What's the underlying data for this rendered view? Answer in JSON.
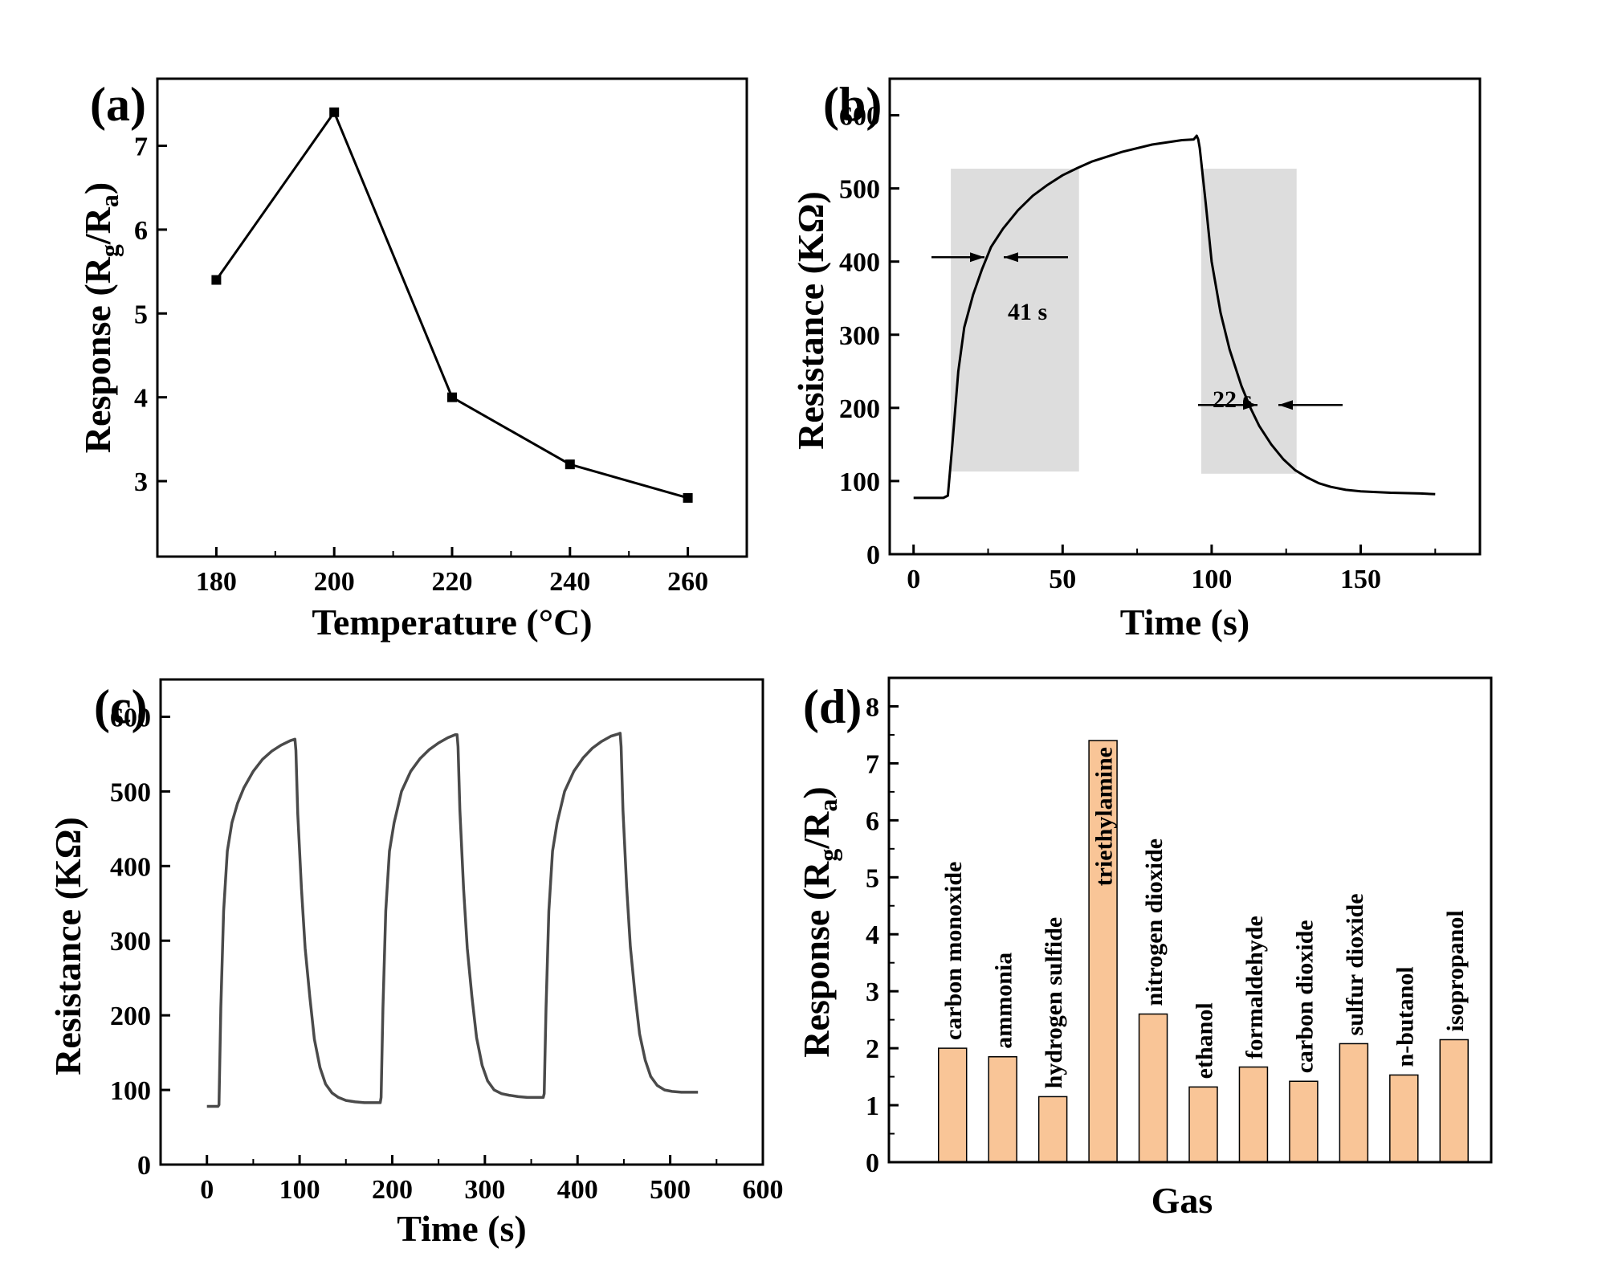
{
  "chart_data": [
    {
      "panel": "(a)",
      "type": "line",
      "xlabel": "Temperature (°C)",
      "ylabel": "Response (Rg/Ra)",
      "ylabel_parts": {
        "prefix": "Response (R",
        "sub1": "g",
        "mid": "/R",
        "sub2": "a",
        "suffix": ")"
      },
      "x": [
        180,
        200,
        220,
        240,
        260
      ],
      "y": [
        5.4,
        7.4,
        4.0,
        3.2,
        2.8
      ],
      "xlim": [
        170,
        270
      ],
      "ylim": [
        2.1,
        7.8
      ],
      "xticks": [
        180,
        200,
        220,
        240,
        260
      ],
      "yticks": [
        3,
        4,
        5,
        6,
        7
      ]
    },
    {
      "panel": "(b)",
      "type": "line",
      "xlabel": "Time (s)",
      "ylabel": "Resistance (KΩ)",
      "x": [
        0,
        10,
        11.5,
        13,
        15,
        17,
        20,
        23,
        26,
        30,
        35,
        40,
        45,
        50,
        55,
        60,
        70,
        80,
        90,
        94,
        95,
        95.5,
        96,
        98,
        100,
        103,
        106,
        110,
        113,
        116,
        120,
        124,
        128,
        132,
        136,
        140,
        145,
        150,
        160,
        170,
        175
      ],
      "y": [
        77,
        77,
        80,
        150,
        250,
        310,
        355,
        390,
        420,
        445,
        470,
        490,
        505,
        518,
        528,
        537,
        550,
        560,
        566,
        567,
        572,
        567,
        555,
        480,
        400,
        330,
        280,
        230,
        200,
        175,
        150,
        130,
        115,
        105,
        97,
        92,
        88,
        86,
        84,
        83,
        82
      ],
      "xlim": [
        -8,
        190
      ],
      "ylim": [
        0,
        650
      ],
      "xticks": [
        0,
        50,
        100,
        150
      ],
      "yticks": [
        0,
        100,
        200,
        300,
        400,
        500,
        600
      ],
      "shaded_regions": [
        {
          "x": [
            12.5,
            55.5
          ],
          "y": [
            113,
            527
          ]
        },
        {
          "x": [
            96.5,
            128.5
          ],
          "y": [
            110,
            527
          ]
        }
      ],
      "annotations": [
        {
          "text": "41 s",
          "x": 35,
          "y": 365
        },
        {
          "text": "22 s",
          "x": 110,
          "y": 228
        }
      ]
    },
    {
      "panel": "(c)",
      "type": "line",
      "xlabel": "Time (s)",
      "ylabel": "Resistance (KΩ)",
      "x": [
        0,
        12,
        13,
        15,
        18,
        22,
        27,
        33,
        40,
        50,
        60,
        70,
        80,
        90,
        95,
        96,
        98,
        102,
        106,
        111,
        116,
        122,
        128,
        135,
        142,
        150,
        160,
        170,
        180,
        187,
        188,
        190,
        193,
        197,
        202,
        210,
        220,
        230,
        240,
        250,
        260,
        268,
        270,
        271,
        273,
        277,
        281,
        286,
        291,
        297,
        303,
        310,
        318,
        326,
        336,
        346,
        356,
        363,
        364,
        366,
        369,
        373,
        378,
        386,
        396,
        406,
        416,
        426,
        436,
        444,
        446,
        447,
        449,
        453,
        457,
        462,
        467,
        473,
        479,
        486,
        494,
        502,
        512,
        522,
        530
      ],
      "y": [
        78,
        78,
        80,
        210,
        340,
        420,
        458,
        484,
        505,
        527,
        543,
        554,
        562,
        568,
        570,
        555,
        470,
        370,
        290,
        225,
        168,
        130,
        108,
        96,
        90,
        86,
        84,
        83,
        83,
        83,
        90,
        210,
        340,
        420,
        458,
        500,
        527,
        544,
        556,
        565,
        572,
        576,
        576,
        560,
        475,
        370,
        290,
        225,
        170,
        133,
        112,
        100,
        95,
        93,
        91,
        90,
        90,
        90,
        95,
        210,
        340,
        420,
        458,
        500,
        527,
        545,
        558,
        567,
        574,
        577,
        578,
        560,
        475,
        372,
        292,
        228,
        175,
        140,
        118,
        106,
        100,
        98,
        97,
        97,
        97
      ],
      "xlim": [
        -50,
        600
      ],
      "ylim": [
        0,
        650
      ],
      "xticks": [
        0,
        100,
        200,
        300,
        400,
        500,
        600
      ],
      "yticks": [
        0,
        100,
        200,
        300,
        400,
        500,
        600
      ]
    },
    {
      "panel": "(d)",
      "type": "bar",
      "xlabel": "Gas",
      "ylabel": "Response (Rg/Ra)",
      "ylabel_parts": {
        "prefix": "Response (R",
        "sub1": "g",
        "mid": "/R",
        "sub2": "a",
        "suffix": ")"
      },
      "categories": [
        "carbon monoxide",
        "ammonia",
        "hydrogen sulfide",
        "triethylamine",
        "nitrogen dioxide",
        "ethanol",
        "formaldehyde",
        "carbon dioxide",
        "sulfur dioxide",
        "n-butanol",
        "isopropanol"
      ],
      "values": [
        2.0,
        1.85,
        1.15,
        7.4,
        2.6,
        1.32,
        1.67,
        1.42,
        2.08,
        1.53,
        2.15
      ],
      "ylim": [
        0,
        8.5
      ],
      "yticks": [
        0,
        1,
        2,
        3,
        4,
        5,
        6,
        7,
        8
      ],
      "bar_color": "#f9c597"
    }
  ]
}
